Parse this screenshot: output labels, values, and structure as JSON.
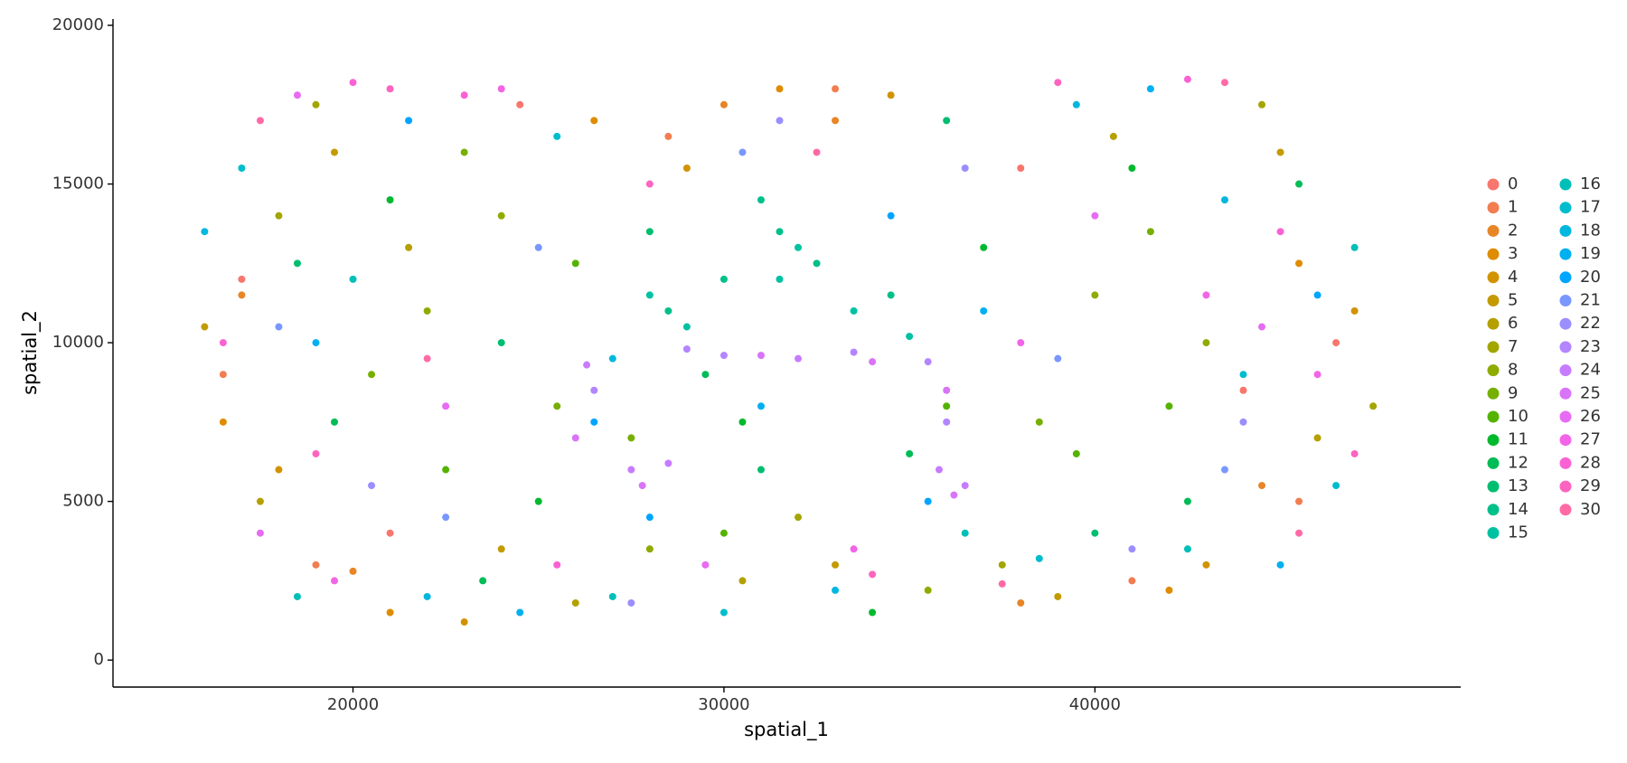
{
  "chart_data": {
    "type": "scatter",
    "x_label": "spatial_1",
    "y_label": "spatial_2",
    "xlim": [
      13530,
      49860
    ],
    "ylim": [
      -850,
      20200
    ],
    "xticks": [
      20000,
      30000,
      40000
    ],
    "yticks": [
      0,
      5000,
      10000,
      15000,
      20000
    ],
    "grid": false,
    "legend": "right",
    "series": [
      {
        "name": "0",
        "color": "#F8766D",
        "x": [
          17000,
          44000,
          21000,
          38000,
          46500,
          24500
        ],
        "y": [
          12000,
          8500,
          4000,
          15500,
          10000,
          17500
        ]
      },
      {
        "name": "1",
        "color": "#F17D50",
        "x": [
          16500,
          33000,
          45500,
          19000,
          41000,
          28500
        ],
        "y": [
          9000,
          18000,
          5000,
          3000,
          2500,
          16500
        ]
      },
      {
        "name": "2",
        "color": "#E88526",
        "x": [
          30000,
          33000,
          20000,
          44500,
          38000,
          17000
        ],
        "y": [
          17500,
          17000,
          2800,
          5500,
          1800,
          11500
        ]
      },
      {
        "name": "3",
        "color": "#DE8C00",
        "x": [
          31500,
          26500,
          21000,
          42000,
          45500,
          16500
        ],
        "y": [
          18000,
          17000,
          1500,
          2200,
          12500,
          7500
        ]
      },
      {
        "name": "4",
        "color": "#D19300",
        "x": [
          34500,
          18000,
          43000,
          23000,
          29000,
          47000
        ],
        "y": [
          17800,
          6000,
          3000,
          1200,
          15500,
          11000
        ]
      },
      {
        "name": "5",
        "color": "#C39A00",
        "x": [
          16000,
          24000,
          39000,
          45000,
          33000,
          19500
        ],
        "y": [
          10500,
          3500,
          2000,
          16000,
          3000,
          16000
        ]
      },
      {
        "name": "6",
        "color": "#B4A000",
        "x": [
          17500,
          30500,
          46000,
          21500,
          40500,
          26000
        ],
        "y": [
          5000,
          2500,
          7000,
          13000,
          16500,
          1800
        ]
      },
      {
        "name": "7",
        "color": "#A3A500",
        "x": [
          19000,
          44500,
          32000,
          18000,
          37500,
          47500
        ],
        "y": [
          17500,
          17500,
          4500,
          14000,
          3000,
          8000
        ]
      },
      {
        "name": "8",
        "color": "#8EAB00",
        "x": [
          22000,
          24000,
          40000,
          43000,
          28000,
          35500
        ],
        "y": [
          11000,
          14000,
          11500,
          10000,
          3500,
          2200
        ]
      },
      {
        "name": "9",
        "color": "#76AF00",
        "x": [
          20500,
          25500,
          38500,
          41500,
          23000,
          27500
        ],
        "y": [
          9000,
          8000,
          7500,
          13500,
          16000,
          7000
        ]
      },
      {
        "name": "10",
        "color": "#55B300",
        "x": [
          22500,
          39500,
          26000,
          42000,
          30000,
          36000
        ],
        "y": [
          6000,
          6500,
          12500,
          8000,
          4000,
          8000
        ]
      },
      {
        "name": "11",
        "color": "#00B92E",
        "x": [
          21000,
          30500,
          37000,
          41000,
          25000,
          34000
        ],
        "y": [
          14500,
          7500,
          13000,
          15500,
          5000,
          1500
        ]
      },
      {
        "name": "12",
        "color": "#00BC56",
        "x": [
          19500,
          29500,
          42500,
          35000,
          23500,
          45500
        ],
        "y": [
          7500,
          9000,
          5000,
          6500,
          2500,
          15000
        ]
      },
      {
        "name": "13",
        "color": "#00BE70",
        "x": [
          24000,
          31000,
          40000,
          18500,
          36000,
          28000
        ],
        "y": [
          10000,
          6000,
          4000,
          12500,
          17000,
          13500
        ]
      },
      {
        "name": "14",
        "color": "#00C089",
        "x": [
          31500,
          32500,
          28500,
          34500,
          31000,
          30000
        ],
        "y": [
          13500,
          12500,
          11000,
          11500,
          14500,
          12000
        ]
      },
      {
        "name": "15",
        "color": "#00C1A2",
        "x": [
          29000,
          33500,
          32000,
          35000,
          28000,
          31500
        ],
        "y": [
          10500,
          11000,
          13000,
          10200,
          11500,
          12000
        ]
      },
      {
        "name": "16",
        "color": "#00BFB8",
        "x": [
          18500,
          27000,
          42500,
          47000,
          20000,
          36500
        ],
        "y": [
          2000,
          2000,
          3500,
          13000,
          12000,
          4000
        ]
      },
      {
        "name": "17",
        "color": "#00BDCD",
        "x": [
          17000,
          25500,
          44000,
          38500,
          30000,
          46500
        ],
        "y": [
          15500,
          16500,
          9000,
          3200,
          1500,
          5500
        ]
      },
      {
        "name": "18",
        "color": "#00B8DF",
        "x": [
          22000,
          33000,
          43500,
          16000,
          39500,
          27000
        ],
        "y": [
          2000,
          2200,
          14500,
          13500,
          17500,
          9500
        ]
      },
      {
        "name": "19",
        "color": "#00B0F0",
        "x": [
          24500,
          31000,
          45000,
          19000,
          37000,
          41500
        ],
        "y": [
          1500,
          8000,
          3000,
          10000,
          11000,
          18000
        ]
      },
      {
        "name": "20",
        "color": "#00A5FF",
        "x": [
          28000,
          35500,
          46000,
          21500,
          34500,
          26500
        ],
        "y": [
          4500,
          5000,
          11500,
          17000,
          14000,
          7500
        ]
      },
      {
        "name": "21",
        "color": "#7997FF",
        "x": [
          18000,
          43500,
          30500,
          25000,
          39000,
          22500
        ],
        "y": [
          10500,
          6000,
          16000,
          13000,
          9500,
          4500
        ]
      },
      {
        "name": "22",
        "color": "#9B8EFF",
        "x": [
          31500,
          44000,
          20500,
          36500,
          27500,
          41000
        ],
        "y": [
          17000,
          7500,
          5500,
          15500,
          1800,
          3500
        ]
      },
      {
        "name": "23",
        "color": "#B385FF",
        "x": [
          30000,
          33500,
          35500,
          26500,
          36000,
          29000
        ],
        "y": [
          9600,
          9700,
          9400,
          8500,
          7500,
          9800
        ]
      },
      {
        "name": "24",
        "color": "#C77CFF",
        "x": [
          27500,
          28500,
          36500,
          35800,
          32000,
          26300
        ],
        "y": [
          6000,
          6200,
          5500,
          6000,
          9500,
          9300
        ]
      },
      {
        "name": "25",
        "color": "#D973F7",
        "x": [
          27800,
          36200,
          26000,
          36000,
          31000,
          34000
        ],
        "y": [
          5500,
          5200,
          7000,
          8500,
          9600,
          9400
        ]
      },
      {
        "name": "26",
        "color": "#E76BF3",
        "x": [
          18500,
          44500,
          22500,
          40000,
          29500,
          17500
        ],
        "y": [
          17800,
          10500,
          8000,
          14000,
          3000,
          4000
        ]
      },
      {
        "name": "27",
        "color": "#F265E7",
        "x": [
          19500,
          43000,
          33500,
          24000,
          46000,
          38000
        ],
        "y": [
          2500,
          11500,
          3500,
          18000,
          9000,
          10000
        ]
      },
      {
        "name": "28",
        "color": "#FA62D4",
        "x": [
          20000,
          23000,
          42500,
          45000,
          25500,
          16500
        ],
        "y": [
          18200,
          17800,
          18300,
          13500,
          3000,
          10000
        ]
      },
      {
        "name": "29",
        "color": "#FE64BF",
        "x": [
          21000,
          39000,
          47000,
          19000,
          34000,
          28000
        ],
        "y": [
          18000,
          18200,
          6500,
          6500,
          2700,
          15000
        ]
      },
      {
        "name": "30",
        "color": "#FF6AA6",
        "x": [
          43500,
          17500,
          37500,
          45500,
          22000,
          32500
        ],
        "y": [
          18200,
          17000,
          2400,
          4000,
          9500,
          16000
        ]
      }
    ]
  }
}
